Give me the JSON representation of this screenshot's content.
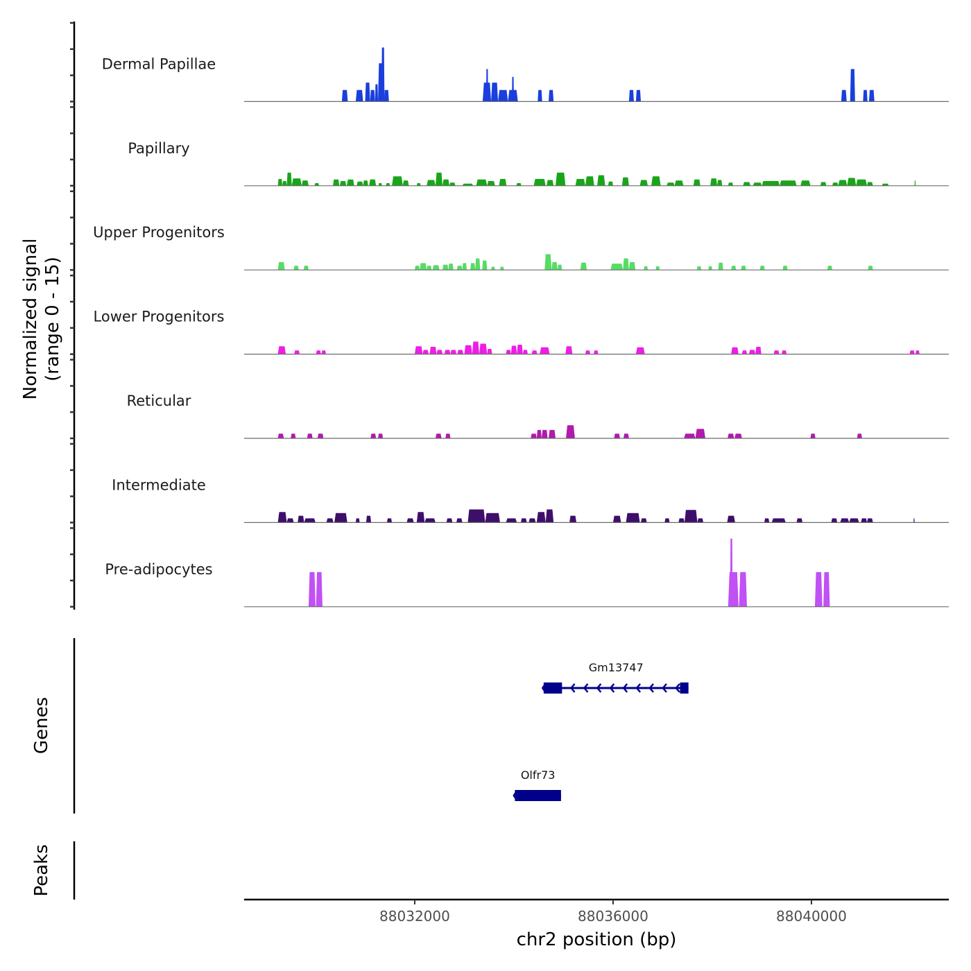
{
  "chart_data": {
    "type": "area",
    "title": "",
    "ylabel": "Normalized signal\n(range 0 - 15)",
    "ylabel_lines": [
      "Normalized signal",
      "(range 0 - 15)"
    ],
    "xlabel": "chr2 position (bp)",
    "xlim": [
      88028560,
      88042770
    ],
    "ylim": [
      0,
      15
    ],
    "x_ticks": [
      88032000,
      88036000,
      88040000
    ],
    "x_tick_labels": [
      "88032000",
      "88036000",
      "88040000"
    ],
    "grid": false,
    "tracks": [
      {
        "name": "Dermal Papillae",
        "color": "#1a3fdc",
        "peaks": [
          [
            88030530,
            88030650,
            2.2
          ],
          [
            88030810,
            88030960,
            2.2
          ],
          [
            88031000,
            88031100,
            3.6
          ],
          [
            88031100,
            88031200,
            2.2
          ],
          [
            88031200,
            88031260,
            3.3
          ],
          [
            88031260,
            88031380,
            7.3
          ],
          [
            88031330,
            88031390,
            10.3
          ],
          [
            88031380,
            88031480,
            2.2
          ],
          [
            88033370,
            88033540,
            3.6
          ],
          [
            88033440,
            88033480,
            6.2
          ],
          [
            88033540,
            88033680,
            3.6
          ],
          [
            88033680,
            88033880,
            2.2
          ],
          [
            88033880,
            88034080,
            2.2
          ],
          [
            88033960,
            88034000,
            4.7
          ],
          [
            88034480,
            88034570,
            2.2
          ],
          [
            88034700,
            88034800,
            2.2
          ],
          [
            88036320,
            88036420,
            2.2
          ],
          [
            88036460,
            88036560,
            2.2
          ],
          [
            88040600,
            88040710,
            2.2
          ],
          [
            88040780,
            88040880,
            6.2
          ],
          [
            88041040,
            88041130,
            2.2
          ],
          [
            88041160,
            88041270,
            2.2
          ]
        ]
      },
      {
        "name": "Papillary",
        "color": "#19a519",
        "peaks": [
          [
            88029240,
            88029330,
            1.3
          ],
          [
            88029330,
            88029420,
            0.9
          ],
          [
            88029420,
            88029520,
            2.5
          ],
          [
            88029520,
            88029720,
            1.4
          ],
          [
            88029720,
            88029860,
            1.0
          ],
          [
            88029980,
            88030070,
            0.5
          ],
          [
            88030350,
            88030480,
            1.2
          ],
          [
            88030490,
            88030620,
            0.9
          ],
          [
            88030630,
            88030780,
            1.2
          ],
          [
            88030830,
            88030960,
            0.8
          ],
          [
            88030960,
            88031060,
            1.0
          ],
          [
            88031080,
            88031220,
            1.2
          ],
          [
            88031270,
            88031340,
            0.5
          ],
          [
            88031420,
            88031500,
            0.5
          ],
          [
            88031540,
            88031760,
            1.8
          ],
          [
            88031760,
            88031880,
            1.0
          ],
          [
            88032040,
            88032120,
            0.5
          ],
          [
            88032240,
            88032420,
            1.1
          ],
          [
            88032420,
            88032560,
            2.5
          ],
          [
            88032560,
            88032700,
            1.2
          ],
          [
            88032700,
            88032820,
            0.6
          ],
          [
            88032960,
            88033180,
            0.4
          ],
          [
            88033240,
            88033460,
            1.2
          ],
          [
            88033460,
            88033620,
            0.9
          ],
          [
            88033700,
            88033850,
            1.3
          ],
          [
            88034050,
            88034150,
            0.5
          ],
          [
            88034400,
            88034640,
            1.3
          ],
          [
            88034660,
            88034800,
            1.1
          ],
          [
            88034840,
            88035040,
            2.5
          ],
          [
            88035240,
            88035440,
            1.3
          ],
          [
            88035440,
            88035620,
            1.8
          ],
          [
            88035680,
            88035840,
            2.0
          ],
          [
            88035900,
            88036000,
            0.8
          ],
          [
            88036180,
            88036320,
            1.6
          ],
          [
            88036540,
            88036700,
            1.1
          ],
          [
            88036770,
            88036960,
            1.8
          ],
          [
            88037080,
            88037240,
            0.6
          ],
          [
            88037240,
            88037420,
            1.0
          ],
          [
            88037620,
            88037760,
            1.2
          ],
          [
            88037960,
            88038100,
            1.4
          ],
          [
            88038100,
            88038200,
            1.1
          ],
          [
            88038320,
            88038420,
            0.6
          ],
          [
            88038620,
            88038770,
            0.7
          ],
          [
            88038820,
            88039000,
            0.6
          ],
          [
            88039000,
            88039360,
            0.9
          ],
          [
            88039360,
            88039700,
            1.0
          ],
          [
            88039780,
            88039980,
            1.0
          ],
          [
            88040180,
            88040300,
            0.7
          ],
          [
            88040420,
            88040540,
            0.6
          ],
          [
            88040540,
            88040720,
            1.1
          ],
          [
            88040720,
            88040900,
            1.5
          ],
          [
            88040900,
            88041120,
            1.2
          ],
          [
            88041120,
            88041240,
            0.7
          ],
          [
            88041420,
            88041560,
            0.4
          ],
          [
            88042080,
            88042100,
            1.0
          ]
        ]
      },
      {
        "name": "Upper Progenitors",
        "color": "#56dc64",
        "peaks": [
          [
            88029240,
            88029380,
            1.5
          ],
          [
            88029560,
            88029660,
            0.8
          ],
          [
            88029760,
            88029860,
            0.8
          ],
          [
            88032000,
            88032100,
            0.8
          ],
          [
            88032100,
            88032240,
            1.3
          ],
          [
            88032240,
            88032340,
            0.8
          ],
          [
            88032360,
            88032500,
            0.9
          ],
          [
            88032560,
            88032680,
            1.0
          ],
          [
            88032680,
            88032780,
            1.2
          ],
          [
            88032850,
            88032960,
            0.8
          ],
          [
            88032960,
            88033050,
            1.3
          ],
          [
            88033120,
            88033220,
            1.3
          ],
          [
            88033220,
            88033320,
            2.2
          ],
          [
            88033360,
            88033460,
            1.8
          ],
          [
            88033540,
            88033620,
            0.6
          ],
          [
            88033720,
            88033800,
            0.6
          ],
          [
            88034620,
            88034760,
            3.0
          ],
          [
            88034760,
            88034880,
            1.5
          ],
          [
            88034880,
            88034970,
            1.0
          ],
          [
            88035340,
            88035470,
            1.4
          ],
          [
            88035950,
            88036200,
            1.2
          ],
          [
            88036200,
            88036320,
            2.2
          ],
          [
            88036320,
            88036450,
            1.5
          ],
          [
            88036620,
            88036700,
            0.7
          ],
          [
            88036860,
            88036940,
            0.7
          ],
          [
            88037690,
            88037780,
            0.7
          ],
          [
            88037920,
            88038000,
            0.7
          ],
          [
            88038120,
            88038220,
            1.4
          ],
          [
            88038380,
            88038480,
            0.8
          ],
          [
            88038580,
            88038680,
            0.8
          ],
          [
            88038960,
            88039060,
            0.8
          ],
          [
            88039420,
            88039520,
            0.8
          ],
          [
            88040320,
            88040420,
            0.8
          ],
          [
            88041140,
            88041240,
            0.8
          ]
        ]
      },
      {
        "name": "Lower Progenitors",
        "color": "#ee1ee6",
        "peaks": [
          [
            88029240,
            88029400,
            1.5
          ],
          [
            88029570,
            88029680,
            0.7
          ],
          [
            88030010,
            88030110,
            0.7
          ],
          [
            88030120,
            88030210,
            0.7
          ],
          [
            88032000,
            88032160,
            1.5
          ],
          [
            88032160,
            88032280,
            0.8
          ],
          [
            88032300,
            88032440,
            1.4
          ],
          [
            88032440,
            88032560,
            0.8
          ],
          [
            88032600,
            88032720,
            0.8
          ],
          [
            88032720,
            88032840,
            0.8
          ],
          [
            88032860,
            88032980,
            0.8
          ],
          [
            88033000,
            88033160,
            1.7
          ],
          [
            88033160,
            88033300,
            2.4
          ],
          [
            88033300,
            88033460,
            2.0
          ],
          [
            88033460,
            88033560,
            1.0
          ],
          [
            88033840,
            88033940,
            0.8
          ],
          [
            88033940,
            88034060,
            1.6
          ],
          [
            88034060,
            88034180,
            1.8
          ],
          [
            88034180,
            88034280,
            0.8
          ],
          [
            88034360,
            88034470,
            0.7
          ],
          [
            88034520,
            88034720,
            1.3
          ],
          [
            88035040,
            88035180,
            1.5
          ],
          [
            88035440,
            88035540,
            0.7
          ],
          [
            88035610,
            88035700,
            0.7
          ],
          [
            88036460,
            88036640,
            1.3
          ],
          [
            88038380,
            88038530,
            1.3
          ],
          [
            88038600,
            88038700,
            0.7
          ],
          [
            88038740,
            88038870,
            0.8
          ],
          [
            88038870,
            88038990,
            1.4
          ],
          [
            88039240,
            88039350,
            0.7
          ],
          [
            88039400,
            88039500,
            0.7
          ],
          [
            88041980,
            88042080,
            0.7
          ],
          [
            88042100,
            88042180,
            0.7
          ]
        ]
      },
      {
        "name": "Reticular",
        "color": "#b01aad",
        "peaks": [
          [
            88029240,
            88029360,
            0.9
          ],
          [
            88029500,
            88029600,
            0.9
          ],
          [
            88029830,
            88029940,
            0.9
          ],
          [
            88030040,
            88030160,
            0.9
          ],
          [
            88031110,
            88031220,
            0.9
          ],
          [
            88031260,
            88031360,
            0.9
          ],
          [
            88032420,
            88032540,
            0.9
          ],
          [
            88032620,
            88032720,
            0.9
          ],
          [
            88034340,
            88034460,
            0.9
          ],
          [
            88034460,
            88034560,
            1.6
          ],
          [
            88034560,
            88034680,
            1.6
          ],
          [
            88034700,
            88034840,
            1.6
          ],
          [
            88035050,
            88035230,
            2.5
          ],
          [
            88036020,
            88036140,
            0.9
          ],
          [
            88036210,
            88036320,
            0.9
          ],
          [
            88037430,
            88037660,
            0.9
          ],
          [
            88037660,
            88037860,
            1.8
          ],
          [
            88038310,
            88038440,
            0.9
          ],
          [
            88038450,
            88038600,
            0.9
          ],
          [
            88039980,
            88040080,
            0.9
          ],
          [
            88040920,
            88041020,
            0.9
          ]
        ]
      },
      {
        "name": "Intermediate",
        "color": "#3d0f6b",
        "peaks": [
          [
            88029240,
            88029420,
            2.0
          ],
          [
            88029420,
            88029560,
            0.8
          ],
          [
            88029640,
            88029770,
            1.3
          ],
          [
            88029770,
            88030000,
            0.8
          ],
          [
            88030220,
            88030360,
            0.8
          ],
          [
            88030380,
            88030640,
            1.8
          ],
          [
            88030810,
            88030890,
            0.8
          ],
          [
            88031020,
            88031120,
            1.3
          ],
          [
            88031440,
            88031540,
            0.8
          ],
          [
            88031840,
            88031980,
            0.8
          ],
          [
            88032040,
            88032200,
            2.0
          ],
          [
            88032200,
            88032420,
            0.8
          ],
          [
            88032640,
            88032760,
            0.8
          ],
          [
            88032840,
            88032960,
            0.8
          ],
          [
            88033070,
            88033420,
            2.5
          ],
          [
            88033420,
            88033720,
            1.8
          ],
          [
            88033840,
            88034060,
            0.8
          ],
          [
            88034140,
            88034260,
            0.8
          ],
          [
            88034300,
            88034440,
            0.8
          ],
          [
            88034460,
            88034640,
            2.0
          ],
          [
            88034640,
            88034800,
            2.5
          ],
          [
            88035120,
            88035260,
            1.3
          ],
          [
            88036000,
            88036160,
            1.3
          ],
          [
            88036260,
            88036540,
            1.8
          ],
          [
            88036560,
            88036680,
            0.8
          ],
          [
            88037040,
            88037140,
            0.8
          ],
          [
            88037320,
            88037440,
            0.8
          ],
          [
            88037440,
            88037700,
            2.4
          ],
          [
            88037700,
            88037820,
            0.8
          ],
          [
            88038300,
            88038460,
            1.3
          ],
          [
            88039050,
            88039150,
            0.8
          ],
          [
            88039200,
            88039480,
            0.8
          ],
          [
            88039700,
            88039820,
            0.8
          ],
          [
            88040400,
            88040520,
            0.8
          ],
          [
            88040580,
            88040760,
            0.8
          ],
          [
            88040760,
            88040960,
            0.8
          ],
          [
            88041000,
            88041120,
            0.8
          ],
          [
            88041120,
            88041240,
            0.8
          ],
          [
            88042060,
            88042080,
            0.8
          ]
        ]
      },
      {
        "name": "Pre-adipocytes",
        "color": "#c150f5",
        "peaks": [
          [
            88029860,
            88030000,
            6.6
          ],
          [
            88030010,
            88030140,
            6.6
          ],
          [
            88038320,
            88038530,
            6.6
          ],
          [
            88038360,
            88038410,
            13.0
          ],
          [
            88038540,
            88038700,
            6.6
          ],
          [
            88040070,
            88040220,
            6.6
          ],
          [
            88040240,
            88040370,
            6.6
          ]
        ]
      }
    ],
    "genes": [
      {
        "name": "Gm13747",
        "strand": "-",
        "start": 88034600,
        "end": 88037520,
        "exons": [
          [
            88034600,
            88034970
          ],
          [
            88037350,
            88037520
          ]
        ],
        "color": "#00008b"
      },
      {
        "name": "Olfr73",
        "strand": "-",
        "start": 88034020,
        "end": 88034950,
        "exons": [
          [
            88034020,
            88034950
          ]
        ],
        "color": "#00008b"
      }
    ],
    "panel_labels": [
      "Genes",
      "Peaks"
    ],
    "peaks_track": []
  }
}
